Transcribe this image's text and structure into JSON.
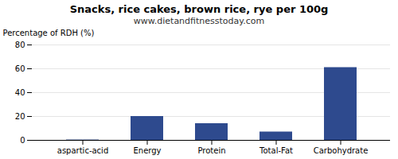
{
  "chart_data": {
    "type": "bar",
    "title": "Snacks, rice cakes, brown rice, rye per 100g",
    "subtitle": "www.dietandfitnesstoday.com",
    "categories": [
      "aspartic-acid",
      "Energy",
      "Protein",
      "Total-Fat",
      "Carbohydrate"
    ],
    "values": [
      0.3,
      20,
      14,
      7,
      61
    ],
    "color": "#2e4a8e",
    "ylabel": "Percentage of RDH (%)",
    "ylim": [
      0,
      80
    ],
    "yticks": [
      0,
      20,
      40,
      60,
      80
    ],
    "grid": true
  }
}
